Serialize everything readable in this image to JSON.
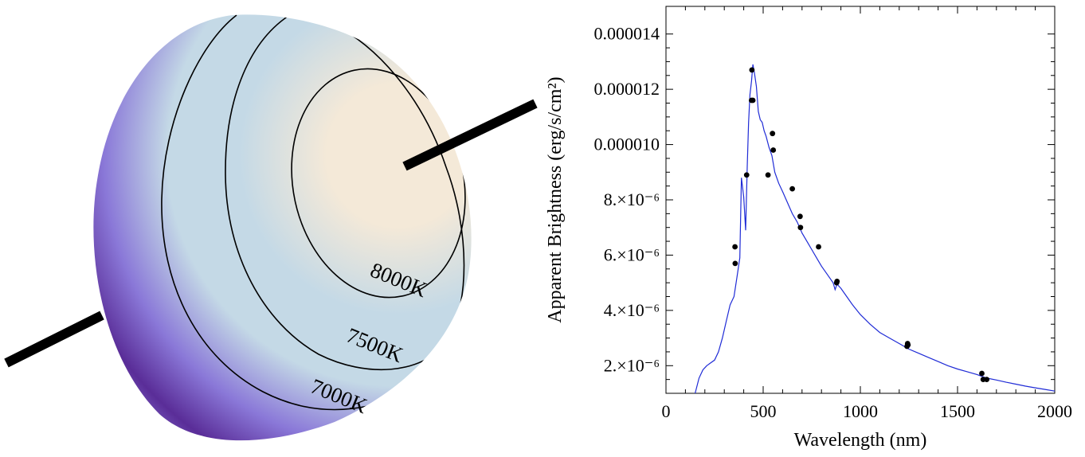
{
  "colors": {
    "line": "#1f2bd6",
    "points": "#000000",
    "sphere_hot": "#f4e9d8",
    "sphere_mid": "#c4d9e6",
    "sphere_cool": "#8a78d8",
    "sphere_cold": "#5a2d98"
  },
  "sphere": {
    "contour_labels": [
      "8000K",
      "7500K",
      "7000K"
    ]
  },
  "chart_data": {
    "type": "scatter",
    "title": "",
    "xlabel": "Wavelength (nm)",
    "ylabel": "Apparent Brightness (erg/s/cm²)",
    "xlim": [
      0,
      2000
    ],
    "ylim": [
      1e-06,
      1.5e-05
    ],
    "x_ticks": [
      {
        "value": 0,
        "label": "0"
      },
      {
        "value": 500,
        "label": "500"
      },
      {
        "value": 1000,
        "label": "1000"
      },
      {
        "value": 1500,
        "label": "1500"
      },
      {
        "value": 2000,
        "label": "2000"
      }
    ],
    "y_ticks": [
      {
        "value": 2e-06,
        "label": "2.×10⁻⁶"
      },
      {
        "value": 4e-06,
        "label": "4.×10⁻⁶"
      },
      {
        "value": 6e-06,
        "label": "6.×10⁻⁶"
      },
      {
        "value": 8e-06,
        "label": "8.×10⁻⁶"
      },
      {
        "value": 1e-05,
        "label": "0.000010"
      },
      {
        "value": 1.2e-05,
        "label": "0.000012"
      },
      {
        "value": 1.4e-05,
        "label": "0.000014"
      }
    ],
    "grid": false,
    "series": [
      {
        "kind": "line",
        "x": [
          150,
          170,
          190,
          210,
          230,
          250,
          270,
          290,
          310,
          330,
          350,
          365,
          380,
          388,
          400,
          410,
          418,
          425,
          432,
          440,
          447,
          455,
          465,
          475,
          485,
          495,
          505,
          515,
          530,
          545,
          560,
          580,
          600,
          625,
          650,
          675,
          700,
          725,
          750,
          775,
          800,
          830,
          860,
          870,
          880,
          900,
          930,
          960,
          1000,
          1050,
          1100,
          1150,
          1200,
          1250,
          1300,
          1350,
          1400,
          1450,
          1500,
          1550,
          1600,
          1650,
          1700,
          1750,
          1800,
          1850,
          1900,
          1950,
          2000
        ],
        "y": [
          1e-06,
          1.55e-06,
          1.85e-06,
          2e-06,
          2.1e-06,
          2.2e-06,
          2.5e-06,
          3e-06,
          3.6e-06,
          4.2e-06,
          4.5e-06,
          5.2e-06,
          5.9e-06,
          8.8e-06,
          8.1e-06,
          6.9e-06,
          9.2e-06,
          1.08e-05,
          1.18e-05,
          1.23e-05,
          1.29e-05,
          1.26e-05,
          1.21e-05,
          1.12e-05,
          1.09e-05,
          1.08e-05,
          1.05e-05,
          1.03e-05,
          9.9e-06,
          9.6e-06,
          9e-06,
          8.6e-06,
          8.3e-06,
          7.9e-06,
          7.5e-06,
          7.2e-06,
          6.8e-06,
          6.5e-06,
          6.2e-06,
          5.9e-06,
          5.6e-06,
          5.3e-06,
          5e-06,
          4.75e-06,
          4.95e-06,
          4.8e-06,
          4.5e-06,
          4.2e-06,
          3.85e-06,
          3.5e-06,
          3.2e-06,
          3e-06,
          2.8e-06,
          2.6e-06,
          2.45e-06,
          2.3e-06,
          2.15e-06,
          2e-06,
          1.88e-06,
          1.78e-06,
          1.68e-06,
          1.55e-06,
          1.48e-06,
          1.4e-06,
          1.33e-06,
          1.26e-06,
          1.2e-06,
          1.14e-06,
          1.08e-06
        ]
      },
      {
        "kind": "points",
        "x": [
          355,
          356,
          415,
          440,
          442,
          447,
          525,
          548,
          552,
          650,
          690,
          692,
          785,
          878,
          880,
          1240,
          1243,
          1245,
          1625,
          1632,
          1650
        ],
        "y": [
          6.3e-06,
          5.7e-06,
          8.9e-06,
          1.16e-05,
          1.27e-05,
          1.16e-05,
          8.9e-06,
          1.04e-05,
          9.8e-06,
          8.4e-06,
          7.4e-06,
          7e-06,
          6.3e-06,
          5e-06,
          5.05e-06,
          2.7e-06,
          2.8e-06,
          2.75e-06,
          1.72e-06,
          1.5e-06,
          1.5e-06
        ]
      }
    ]
  }
}
